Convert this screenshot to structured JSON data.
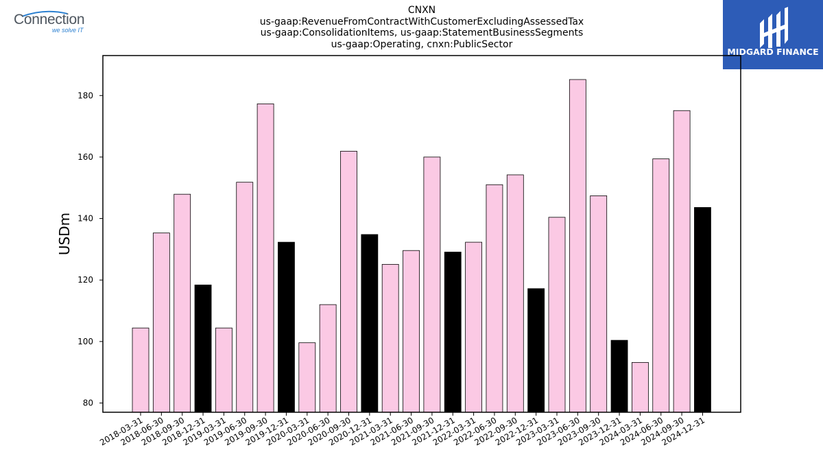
{
  "header": {
    "title_lines": [
      "CNXN",
      "us-gaap:RevenueFromContractWithCustomerExcludingAssessedTax",
      "us-gaap:ConsolidationItems, us-gaap:StatementBusinessSegments",
      "us-gaap:Operating, cnxn:PublicSector"
    ]
  },
  "logos": {
    "left": {
      "name": "Connection",
      "tagline": "we solve IT"
    },
    "right": {
      "name": "MIDGARD FINANCE",
      "background": "#2d5cb7"
    }
  },
  "chart_data": {
    "type": "bar",
    "ylabel": "USDm",
    "xlabel": "",
    "ylim": [
      77,
      193
    ],
    "yticks": [
      80,
      100,
      120,
      140,
      160,
      180
    ],
    "categories": [
      "2018-03-31",
      "2018-06-30",
      "2018-09-30",
      "2018-12-31",
      "2019-03-31",
      "2019-06-30",
      "2019-09-30",
      "2019-12-31",
      "2020-03-31",
      "2020-06-30",
      "2020-09-30",
      "2020-12-31",
      "2021-03-31",
      "2021-06-30",
      "2021-09-30",
      "2021-12-31",
      "2022-03-31",
      "2022-06-30",
      "2022-09-30",
      "2022-12-31",
      "2023-03-31",
      "2023-06-30",
      "2023-09-30",
      "2023-12-31",
      "2024-03-31",
      "2024-06-30",
      "2024-09-30",
      "2024-12-31"
    ],
    "values": [
      104.4,
      135.3,
      147.9,
      118.4,
      104.4,
      151.8,
      177.3,
      132.3,
      99.6,
      112.0,
      161.9,
      134.8,
      125.1,
      129.6,
      160.0,
      129.1,
      132.3,
      151.0,
      154.2,
      117.2,
      140.4,
      185.2,
      147.4,
      100.4,
      93.2,
      159.4,
      175.1,
      143.6
    ],
    "colors": {
      "quarter": "#fbc9e4",
      "year_end": "#000000",
      "edge": "#000000"
    },
    "year_end_flags": [
      0,
      0,
      0,
      1,
      0,
      0,
      0,
      1,
      0,
      0,
      0,
      1,
      0,
      0,
      0,
      1,
      0,
      0,
      0,
      1,
      0,
      0,
      0,
      1,
      0,
      0,
      0,
      1
    ],
    "grid": false,
    "legend": "none"
  }
}
